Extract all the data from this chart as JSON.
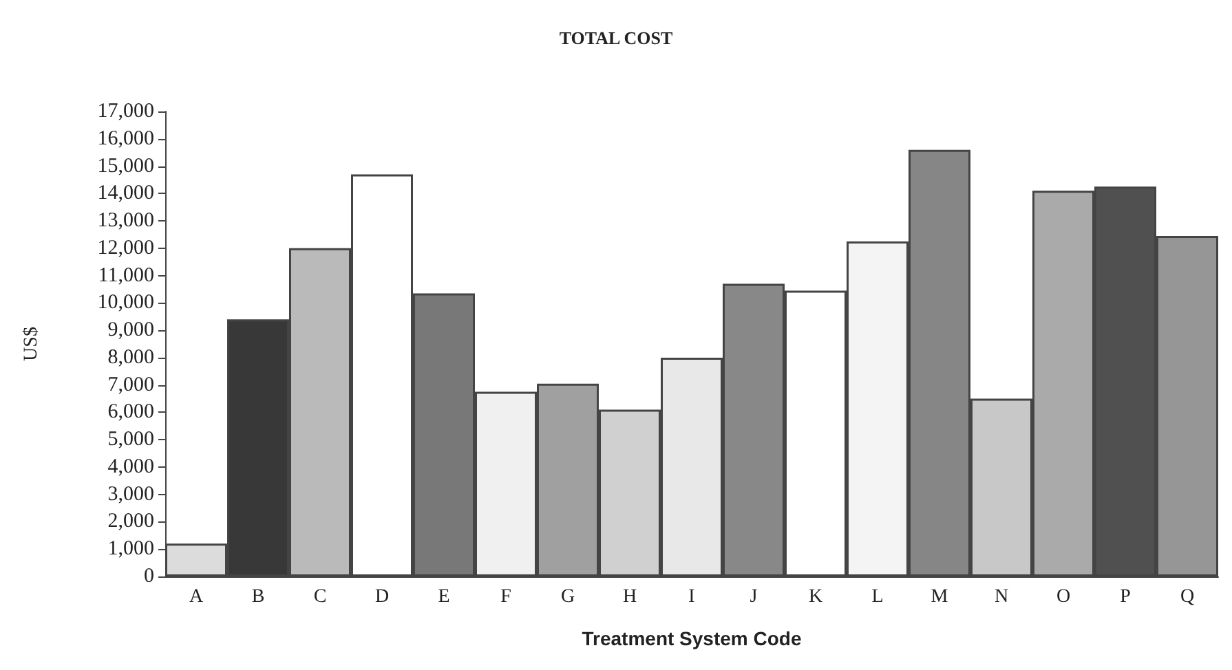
{
  "chart_data": {
    "type": "bar",
    "title": "TOTAL COST",
    "xlabel": "Treatment System Code",
    "ylabel": "US$",
    "categories": [
      "A",
      "B",
      "C",
      "D",
      "E",
      "F",
      "G",
      "H",
      "I",
      "J",
      "K",
      "L",
      "M",
      "N",
      "O",
      "P",
      "Q"
    ],
    "values": [
      1200,
      9400,
      12000,
      14700,
      10350,
      6750,
      7050,
      6100,
      8000,
      10700,
      10450,
      12250,
      15600,
      6500,
      14100,
      14250,
      12450
    ],
    "colors": [
      "#dcdcdc",
      "#383838",
      "#bababa",
      "#ffffff",
      "#787878",
      "#f0f0f0",
      "#a0a0a0",
      "#d0d0d0",
      "#e8e8e8",
      "#888888",
      "#ffffff",
      "#f4f4f4",
      "#868686",
      "#c8c8c8",
      "#aaaaaa",
      "#505050",
      "#969696"
    ],
    "ylim": [
      0,
      17000
    ],
    "yticks": [
      0,
      {
        "value": 1000,
        "label": "1,000"
      },
      {
        "value": 2000,
        "label": "2,000"
      },
      {
        "value": 3000,
        "label": "3,000"
      },
      {
        "value": 4000,
        "label": "4,000"
      },
      {
        "value": 5000,
        "label": "5,000"
      },
      {
        "value": 6000,
        "label": "6,000"
      },
      {
        "value": 7000,
        "label": "7,000"
      },
      {
        "value": 8000,
        "label": "8,000"
      },
      {
        "value": 9000,
        "label": "9,000"
      },
      {
        "value": 10000,
        "label": "10,000"
      },
      {
        "value": 11000,
        "label": "11,000"
      },
      {
        "value": 12000,
        "label": "12,000"
      },
      {
        "value": 13000,
        "label": "13,000"
      },
      {
        "value": 14000,
        "label": "14,000"
      },
      {
        "value": 15000,
        "label": "15,000"
      },
      {
        "value": 16000,
        "label": "16,000"
      },
      {
        "value": 17000,
        "label": "17,000"
      }
    ],
    "grid": false
  }
}
